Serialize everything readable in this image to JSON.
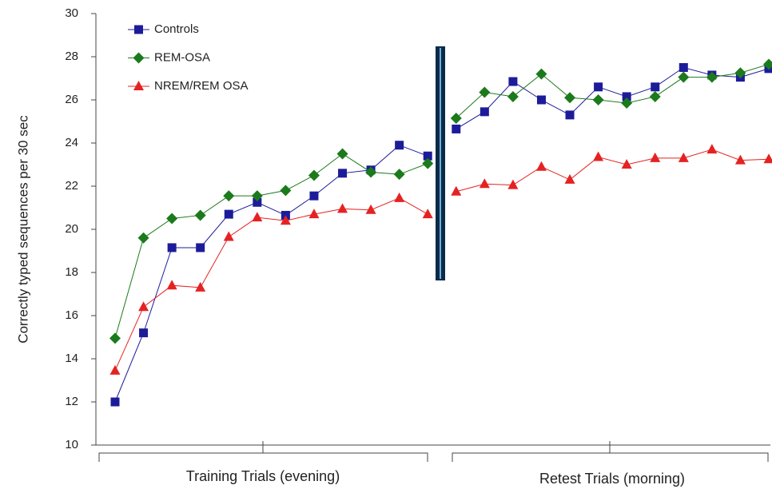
{
  "chart_data": {
    "type": "line",
    "y_label": "Correctly typed sequences per 30 sec",
    "group_labels": [
      "Training Trials (evening)",
      "Retest Trials (morning)"
    ],
    "categories": [
      null,
      null,
      null,
      null,
      null,
      null,
      null,
      null,
      null,
      null,
      null,
      null,
      null,
      null,
      null,
      null,
      null,
      null,
      null,
      null,
      null,
      null,
      null,
      null
    ],
    "series": [
      {
        "name": "Controls",
        "color": "#1c1c9a",
        "marker": "square",
        "values": [
          12,
          15.2,
          19.15,
          19.15,
          20.7,
          21.25,
          20.65,
          21.55,
          22.6,
          22.75,
          23.9,
          23.4,
          24.65,
          25.45,
          26.85,
          26.0,
          25.3,
          26.6,
          26.15,
          26.6,
          27.5,
          27.15,
          27.05,
          27.45
        ]
      },
      {
        "name": "REM-OSA",
        "color": "#1b7a1b",
        "marker": "diamond",
        "values": [
          14.95,
          19.6,
          20.5,
          20.65,
          21.55,
          21.55,
          21.8,
          22.5,
          23.5,
          22.65,
          22.55,
          23.05,
          25.15,
          26.35,
          26.15,
          27.2,
          26.1,
          26.0,
          25.85,
          26.15,
          27.05,
          27.05,
          27.25,
          27.65
        ]
      },
      {
        "name": "NREM/REM OSA",
        "color": "#e52222",
        "marker": "triangle",
        "values": [
          13.45,
          16.4,
          17.4,
          17.3,
          19.65,
          20.55,
          20.4,
          20.7,
          20.95,
          20.9,
          21.45,
          20.7,
          21.75,
          22.1,
          22.05,
          22.9,
          22.3,
          23.35,
          23.0,
          23.3,
          23.3,
          23.7,
          23.2,
          23.25
        ]
      }
    ],
    "ylim": [
      10,
      30
    ],
    "yticks": [
      10,
      12,
      14,
      16,
      18,
      20,
      22,
      24,
      26,
      28,
      30
    ],
    "legend": "upper left"
  }
}
